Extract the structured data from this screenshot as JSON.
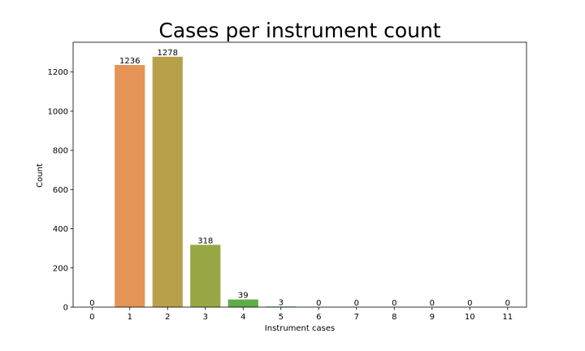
{
  "chart_data": {
    "type": "bar",
    "title": "Cases per instrument count",
    "xlabel": "Instrument cases",
    "ylabel": "Count",
    "categories": [
      "0",
      "1",
      "2",
      "3",
      "4",
      "5",
      "6",
      "7",
      "8",
      "9",
      "10",
      "11"
    ],
    "values": [
      0,
      1236,
      1278,
      318,
      39,
      3,
      0,
      0,
      0,
      0,
      0,
      0
    ],
    "data_labels": [
      "0",
      "1236",
      "1278",
      "318",
      "39",
      "3",
      "0",
      "0",
      "0",
      "0",
      "0",
      "0"
    ],
    "bar_colors": [
      "#e8826a",
      "#e39456",
      "#b8a04b",
      "#98a744",
      "#5ead46",
      "#3aae7a",
      "#3aae9e",
      "#3ba7b8",
      "#4aa1cf",
      "#7d90e0",
      "#b47ee0",
      "#e072d0"
    ],
    "ylim": [
      0,
      1352
    ],
    "yticks": [
      0,
      200,
      400,
      600,
      800,
      1000,
      1200
    ],
    "grid": false,
    "legend": "none"
  }
}
